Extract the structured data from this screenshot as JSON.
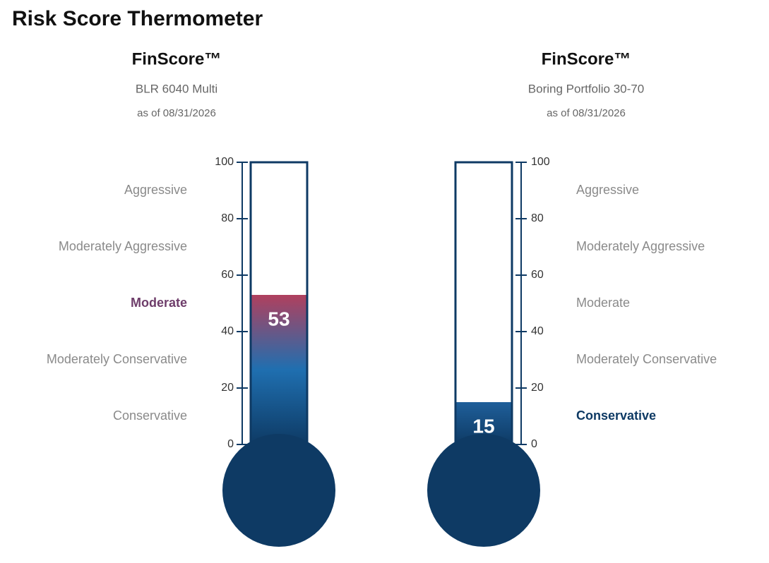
{
  "title": "Risk Score Thermometer",
  "chart_data": [
    {
      "type": "thermometer",
      "title": "FinScore™",
      "subtitle": "BLR 6040 Multi",
      "date_label": "as of 08/31/2026",
      "value": 53,
      "ylim": [
        0,
        100
      ],
      "yticks": [
        0,
        20,
        40,
        60,
        80,
        100
      ],
      "categories": [
        "Conservative",
        "Moderately Conservative",
        "Moderate",
        "Moderately Aggressive",
        "Aggressive"
      ],
      "label_side": "left",
      "fill_colors": [
        "#0e3a64",
        "#1f6fb0",
        "#b0405e"
      ],
      "highlight_color": "#6e3d6a"
    },
    {
      "type": "thermometer",
      "title": "FinScore™",
      "subtitle": "Boring Portfolio 30-70",
      "date_label": "as of 08/31/2026",
      "value": 15,
      "ylim": [
        0,
        100
      ],
      "yticks": [
        0,
        20,
        40,
        60,
        80,
        100
      ],
      "categories": [
        "Conservative",
        "Moderately Conservative",
        "Moderate",
        "Moderately Aggressive",
        "Aggressive"
      ],
      "label_side": "right",
      "fill_colors": [
        "#0e3a64",
        "#1f5f9a"
      ],
      "highlight_color": "#0e3a64"
    }
  ]
}
